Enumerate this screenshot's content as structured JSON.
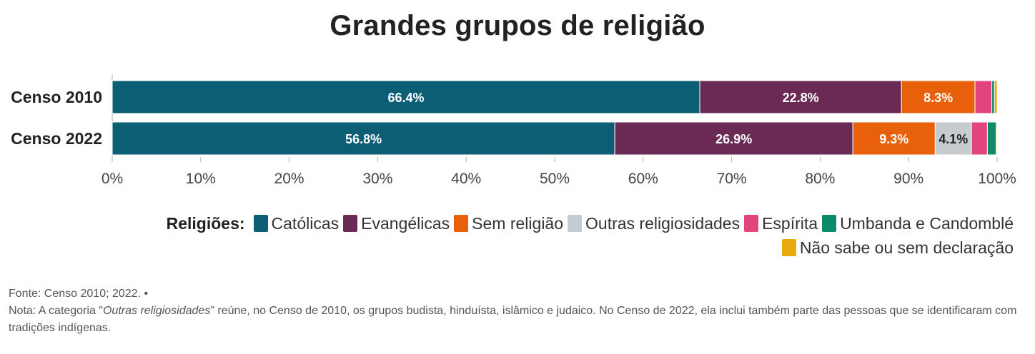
{
  "chart_data": {
    "type": "bar",
    "orientation": "horizontal",
    "stacked": true,
    "title": "Grandes grupos de religião",
    "categories": [
      "Censo 2010",
      "Censo 2022"
    ],
    "series": [
      {
        "name": "Católicas",
        "color": "#0b5e74",
        "values": [
          66.4,
          56.8
        ],
        "labels": [
          "66.4%",
          "56.8%"
        ]
      },
      {
        "name": "Evangélicas",
        "color": "#6b2a55",
        "values": [
          22.8,
          26.9
        ],
        "labels": [
          "22.8%",
          "26.9%"
        ]
      },
      {
        "name": "Sem religião",
        "color": "#e8600a",
        "values": [
          8.3,
          9.3
        ],
        "labels": [
          "8.3%",
          "9.3%"
        ]
      },
      {
        "name": "Outras religiosidades",
        "color": "#c6cbcf",
        "values": [
          0.0,
          4.1
        ],
        "labels": [
          "",
          "4.1%"
        ]
      },
      {
        "name": "Espírita",
        "color": "#e2447e",
        "values": [
          1.9,
          1.8
        ],
        "labels": [
          "",
          ""
        ]
      },
      {
        "name": "Umbanda e Candomblé",
        "color": "#0d8a6a",
        "values": [
          0.3,
          1.0
        ],
        "labels": [
          "",
          ""
        ]
      },
      {
        "name": "Não sabe ou sem declaração",
        "color": "#eaa90c",
        "values": [
          0.3,
          0.1
        ],
        "labels": [
          "",
          ""
        ]
      }
    ],
    "xlim": [
      0,
      100
    ],
    "xticks": [
      "0%",
      "10%",
      "20%",
      "30%",
      "40%",
      "50%",
      "60%",
      "70%",
      "80%",
      "90%",
      "100%"
    ],
    "grid": false,
    "legend_placement": "bottom-right"
  },
  "legend": {
    "title": "Religiões:"
  },
  "footer": {
    "source": "Fonte: Censo 2010; 2022. •",
    "note_prefix": "Nota: A categoria \"",
    "note_term": "Outras religiosidades",
    "note_suffix": "\" reúne, no Censo de 2010, os grupos budista, hinduísta, islâmico e judaico. No Censo de 2022, ela inclui também parte das pessoas que se identificaram com tradições indígenas."
  }
}
